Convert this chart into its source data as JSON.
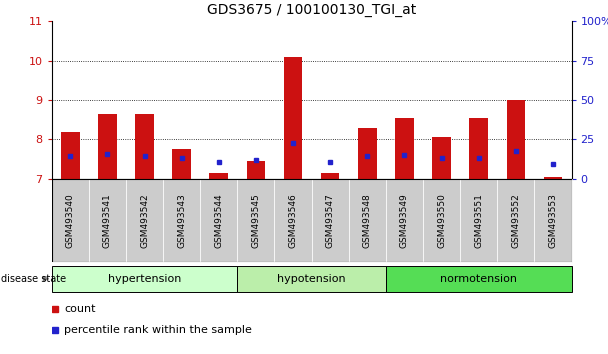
{
  "title": "GDS3675 / 100100130_TGI_at",
  "samples": [
    "GSM493540",
    "GSM493541",
    "GSM493542",
    "GSM493543",
    "GSM493544",
    "GSM493545",
    "GSM493546",
    "GSM493547",
    "GSM493548",
    "GSM493549",
    "GSM493550",
    "GSM493551",
    "GSM493552",
    "GSM493553"
  ],
  "count_values": [
    8.2,
    8.65,
    8.65,
    7.75,
    7.15,
    7.45,
    10.1,
    7.15,
    8.28,
    8.55,
    8.05,
    8.55,
    9.0,
    7.05
  ],
  "percentile_values": [
    7.57,
    7.63,
    7.58,
    7.53,
    7.42,
    7.47,
    7.92,
    7.42,
    7.57,
    7.6,
    7.52,
    7.52,
    7.7,
    7.38
  ],
  "ylim_left": [
    7,
    11
  ],
  "yticks_left": [
    7,
    8,
    9,
    10,
    11
  ],
  "ylim_right": [
    0,
    100
  ],
  "yticks_right": [
    0,
    25,
    50,
    75,
    100
  ],
  "group_labels": [
    "hypertension",
    "hypotension",
    "normotension"
  ],
  "group_starts": [
    0,
    5,
    9
  ],
  "group_ends": [
    5,
    9,
    14
  ],
  "group_colors": [
    "#ccffcc",
    "#bbeeaa",
    "#55dd55"
  ],
  "bar_color": "#cc1111",
  "dot_color": "#2222cc",
  "tick_label_bg": "#cccccc",
  "left_axis_color": "#cc1111",
  "right_axis_color": "#2222cc",
  "grid_color": "#000000",
  "bar_width": 0.5,
  "sample_label_fontsize": 6.5,
  "group_label_fontsize": 8
}
